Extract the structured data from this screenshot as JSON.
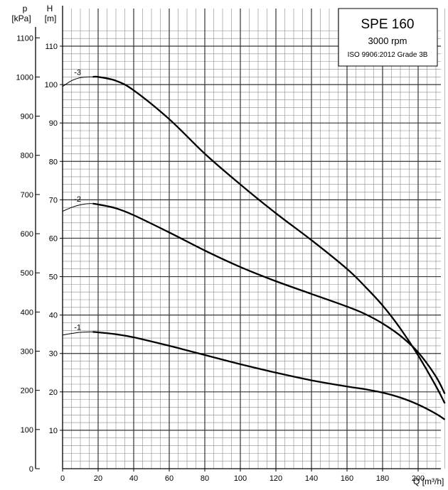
{
  "chart_data": {
    "type": "line",
    "x_unit_label": "Q [m³/h]",
    "y_left_unit_label": [
      "p",
      "[kPa]"
    ],
    "y_right_unit_label": [
      "H",
      "[m]"
    ],
    "xlim": [
      0,
      215
    ],
    "ylim_H": [
      0,
      115
    ],
    "ylim_p": [
      0,
      1128
    ],
    "x_ticks": [
      "0",
      "20",
      "40",
      "60",
      "80",
      "100",
      "120",
      "140",
      "160",
      "180",
      "200"
    ],
    "H_ticks": [
      "10",
      "20",
      "30",
      "40",
      "50",
      "60",
      "70",
      "80",
      "90",
      "100",
      "110"
    ],
    "p_ticks": [
      "0",
      "100",
      "200",
      "300",
      "400",
      "500",
      "600",
      "700",
      "800",
      "900",
      "1000",
      "1100"
    ],
    "grid": true,
    "legend": {
      "title": "SPE 160",
      "speed": "3000 rpm",
      "standard": "ISO 9906:2012 Grade 3B",
      "placement": "top-right"
    },
    "series": [
      {
        "name": "-3",
        "thin_x": [
          0,
          5,
          10,
          15,
          17
        ],
        "thin_y": [
          99.5,
          101,
          101.8,
          102.0,
          102.0
        ],
        "x": [
          17,
          20,
          30,
          40,
          60,
          80,
          100,
          120,
          140,
          160,
          170,
          180,
          190,
          200,
          210,
          215
        ],
        "y": [
          102.0,
          102.0,
          101.0,
          98.5,
          91.0,
          82.0,
          74.0,
          66.5,
          59.5,
          52.0,
          47.5,
          42.5,
          36.5,
          29.5,
          21.5,
          17.0
        ]
      },
      {
        "name": "-2",
        "thin_x": [
          0,
          5,
          10,
          15,
          17
        ],
        "thin_y": [
          67.0,
          68.0,
          68.7,
          69.0,
          69.0
        ],
        "x": [
          17,
          20,
          30,
          40,
          60,
          80,
          100,
          120,
          140,
          160,
          170,
          180,
          190,
          200,
          210,
          215
        ],
        "y": [
          69.0,
          68.8,
          67.8,
          66.0,
          61.5,
          56.8,
          52.5,
          48.8,
          45.5,
          42.2,
          40.3,
          37.8,
          34.6,
          30.3,
          24.0,
          19.5
        ]
      },
      {
        "name": "-1",
        "thin_x": [
          0,
          5,
          10,
          15,
          17
        ],
        "thin_y": [
          34.8,
          35.2,
          35.5,
          35.6,
          35.6
        ],
        "x": [
          17,
          20,
          30,
          40,
          60,
          80,
          100,
          120,
          140,
          160,
          170,
          180,
          190,
          200,
          210,
          215
        ],
        "y": [
          35.6,
          35.5,
          35.0,
          34.2,
          32.0,
          29.6,
          27.2,
          25.0,
          23.0,
          21.4,
          20.7,
          19.8,
          18.5,
          16.7,
          14.3,
          12.8
        ]
      }
    ]
  }
}
